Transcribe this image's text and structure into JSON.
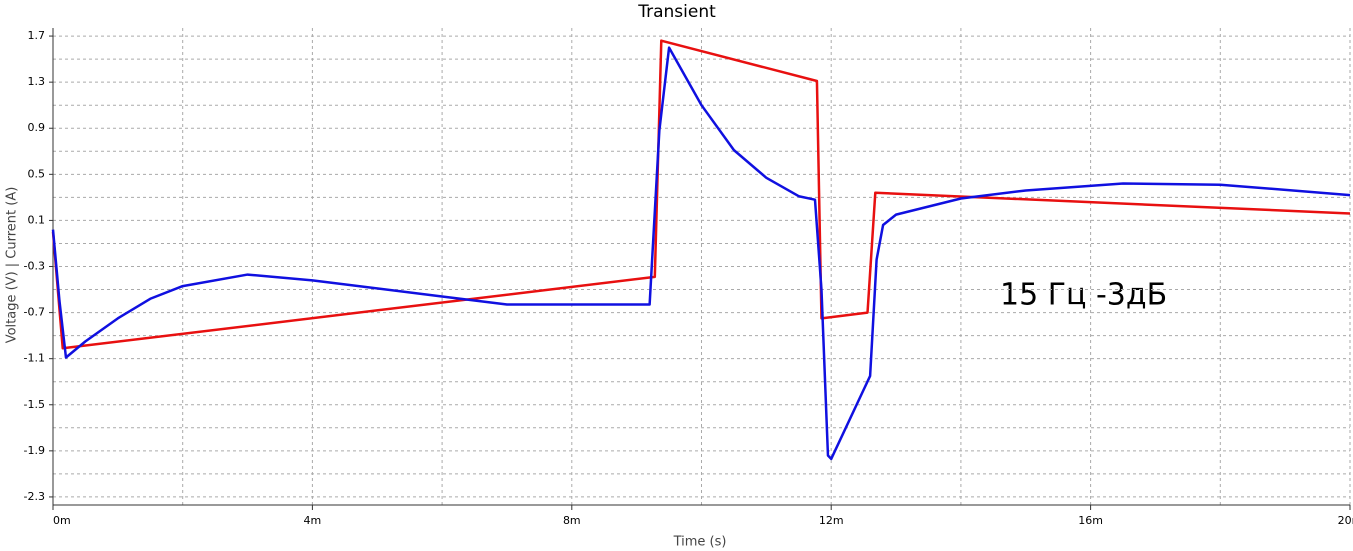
{
  "chart_data": {
    "type": "line",
    "title": "Transient",
    "x_label": "Time (s)",
    "y_label": "Voltage (V) | Current (A)",
    "annotation": "15 Гц -3дБ",
    "xlim": [
      0,
      0.02
    ],
    "ylim": [
      -2.37,
      1.77
    ],
    "xticks": [
      {
        "value": 0,
        "label": "0m"
      },
      {
        "value": 0.004,
        "label": "4m"
      },
      {
        "value": 0.008,
        "label": "8m"
      },
      {
        "value": 0.012,
        "label": "12m"
      },
      {
        "value": 0.016,
        "label": "16m"
      },
      {
        "value": 0.02,
        "label": "20m"
      }
    ],
    "minor_xticks": [
      0.002,
      0.006,
      0.01,
      0.014,
      0.018
    ],
    "yticks": [
      1.7,
      1.3,
      0.9,
      0.5,
      0.1,
      -0.3,
      -0.7,
      -1.1,
      -1.5,
      -1.9,
      -2.3
    ],
    "minor_yticks": [
      1.5,
      1.1,
      0.7,
      0.3,
      -0.1,
      -0.5,
      -0.9,
      -1.3,
      -1.7,
      -2.1
    ],
    "grid": true,
    "series": [
      {
        "color": "#e81010",
        "x": [
          0,
          0.00015,
          0.00928,
          0.00938,
          0.01178,
          0.01185,
          0.01256,
          0.01268,
          0.02
        ],
        "values": [
          0.0,
          -1.01,
          -0.39,
          1.66,
          1.31,
          -0.75,
          -0.7,
          0.34,
          0.16
        ]
      },
      {
        "color": "#1010e0",
        "x": [
          0,
          0.0001,
          0.0002,
          0.0005,
          0.001,
          0.0015,
          0.002,
          0.003,
          0.004,
          0.006,
          0.007,
          0.0092,
          0.00935,
          0.0095,
          0.01,
          0.0105,
          0.011,
          0.0115,
          0.01175,
          0.01185,
          0.01195,
          0.012,
          0.0125,
          0.0126,
          0.0127,
          0.0128,
          0.013,
          0.014,
          0.015,
          0.0165,
          0.018,
          0.02
        ],
        "values": [
          0.02,
          -0.6,
          -1.09,
          -0.95,
          -0.75,
          -0.58,
          -0.47,
          -0.37,
          -0.42,
          -0.56,
          -0.63,
          -0.63,
          0.88,
          1.6,
          1.1,
          0.71,
          0.47,
          0.31,
          0.28,
          -0.5,
          -1.94,
          -1.97,
          -1.37,
          -1.25,
          -0.24,
          0.06,
          0.15,
          0.29,
          0.36,
          0.42,
          0.41,
          0.32
        ]
      }
    ]
  }
}
